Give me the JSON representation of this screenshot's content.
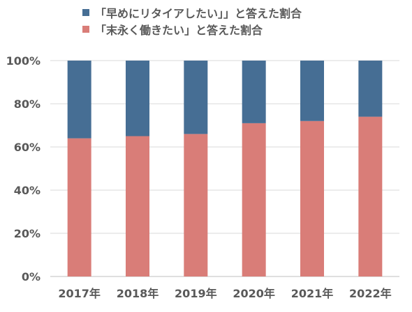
{
  "chart_data": {
    "type": "bar",
    "stacked": true,
    "categories": [
      "2017年",
      "2018年",
      "2019年",
      "2020年",
      "2021年",
      "2022年"
    ],
    "series": [
      {
        "name": "「末永く働きたい」と答えた割合",
        "color": "#d97d78",
        "values": [
          64,
          65,
          66,
          71,
          72,
          74
        ]
      },
      {
        "name": "「早めにリタイアしたい」」と答えた割合",
        "color": "#466e94",
        "values": [
          36,
          35,
          34,
          29,
          28,
          26
        ]
      }
    ],
    "legend_order": [
      1,
      0
    ],
    "title": "",
    "xlabel": "",
    "ylabel": "",
    "ylim": [
      0,
      100
    ],
    "yticks": [
      "0%",
      "20%",
      "40%",
      "60%",
      "80%",
      "100%"
    ],
    "grid": true,
    "legend_position": "top"
  }
}
